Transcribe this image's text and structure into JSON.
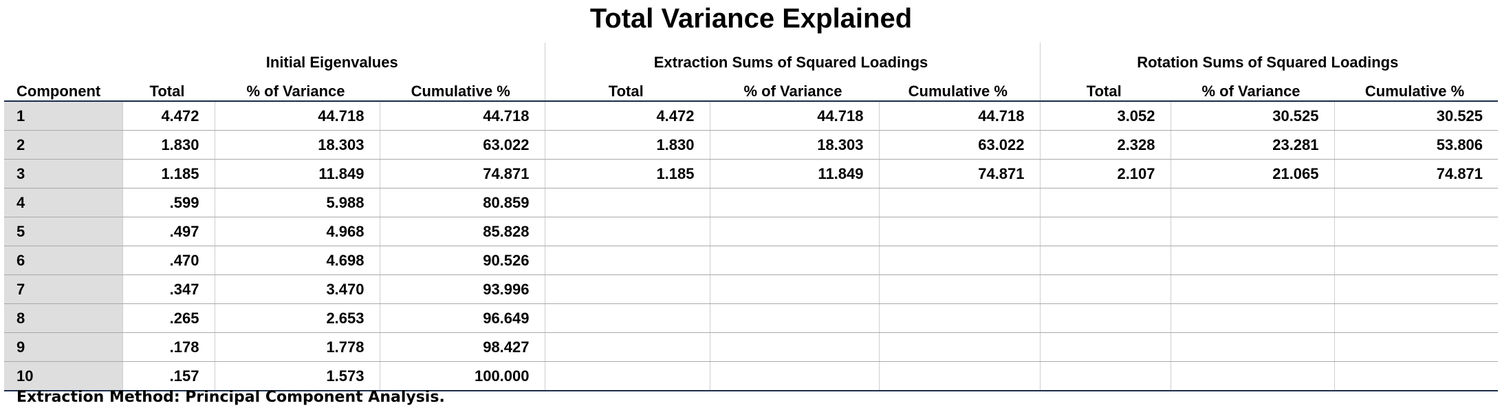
{
  "title": "Total Variance Explained",
  "header": {
    "row_label": "Component",
    "groups": [
      "Initial Eigenvalues",
      "Extraction Sums of Squared Loadings",
      "Rotation Sums of Squared Loadings"
    ],
    "columns": [
      "Total",
      "% of Variance",
      "Cumulative %"
    ]
  },
  "rows": [
    {
      "component": "1",
      "initial": [
        "4.472",
        "44.718",
        "44.718"
      ],
      "extraction": [
        "4.472",
        "44.718",
        "44.718"
      ],
      "rotation": [
        "3.052",
        "30.525",
        "30.525"
      ]
    },
    {
      "component": "2",
      "initial": [
        "1.830",
        "18.303",
        "63.022"
      ],
      "extraction": [
        "1.830",
        "18.303",
        "63.022"
      ],
      "rotation": [
        "2.328",
        "23.281",
        "53.806"
      ]
    },
    {
      "component": "3",
      "initial": [
        "1.185",
        "11.849",
        "74.871"
      ],
      "extraction": [
        "1.185",
        "11.849",
        "74.871"
      ],
      "rotation": [
        "2.107",
        "21.065",
        "74.871"
      ]
    },
    {
      "component": "4",
      "initial": [
        ".599",
        "5.988",
        "80.859"
      ],
      "extraction": [
        "",
        "",
        ""
      ],
      "rotation": [
        "",
        "",
        ""
      ]
    },
    {
      "component": "5",
      "initial": [
        ".497",
        "4.968",
        "85.828"
      ],
      "extraction": [
        "",
        "",
        ""
      ],
      "rotation": [
        "",
        "",
        ""
      ]
    },
    {
      "component": "6",
      "initial": [
        ".470",
        "4.698",
        "90.526"
      ],
      "extraction": [
        "",
        "",
        ""
      ],
      "rotation": [
        "",
        "",
        ""
      ]
    },
    {
      "component": "7",
      "initial": [
        ".347",
        "3.470",
        "93.996"
      ],
      "extraction": [
        "",
        "",
        ""
      ],
      "rotation": [
        "",
        "",
        ""
      ]
    },
    {
      "component": "8",
      "initial": [
        ".265",
        "2.653",
        "96.649"
      ],
      "extraction": [
        "",
        "",
        ""
      ],
      "rotation": [
        "",
        "",
        ""
      ]
    },
    {
      "component": "9",
      "initial": [
        ".178",
        "1.778",
        "98.427"
      ],
      "extraction": [
        "",
        "",
        ""
      ],
      "rotation": [
        "",
        "",
        ""
      ]
    },
    {
      "component": "10",
      "initial": [
        ".157",
        "1.573",
        "100.000"
      ],
      "extraction": [
        "",
        "",
        ""
      ],
      "rotation": [
        "",
        "",
        ""
      ]
    }
  ],
  "footnote": "Extraction Method: Principal Component Analysis."
}
